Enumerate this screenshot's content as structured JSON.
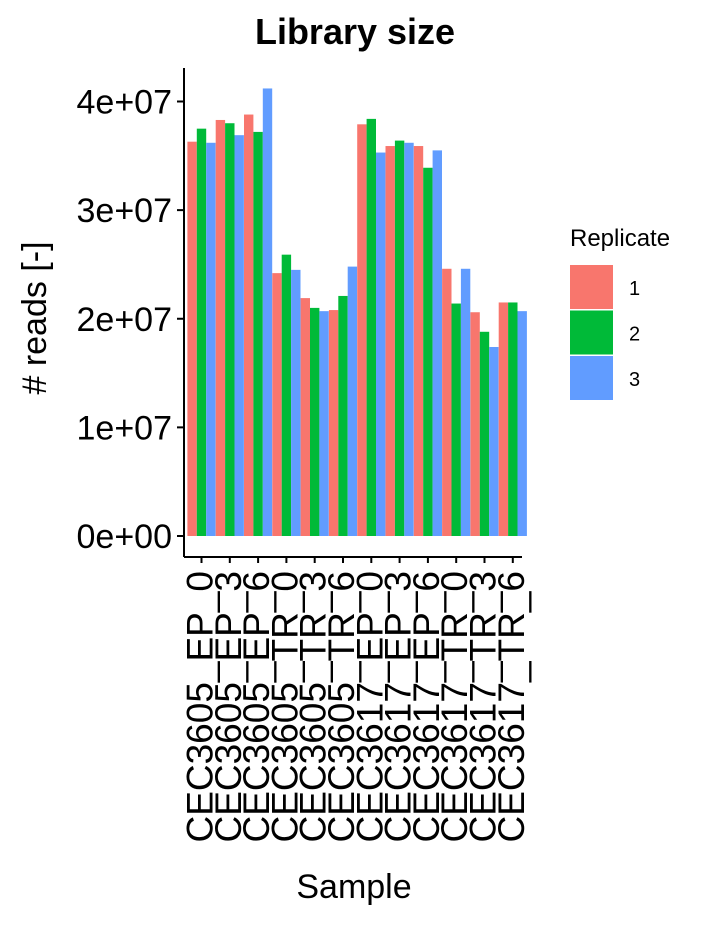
{
  "chart_data": {
    "type": "bar",
    "title": "Library size",
    "xlabel": "Sample",
    "ylabel": "# reads [-]",
    "ylim": [
      0,
      40000000
    ],
    "yticks": [
      {
        "value": 0,
        "label": "0e+00"
      },
      {
        "value": 10000000,
        "label": "1e+07"
      },
      {
        "value": 20000000,
        "label": "2e+07"
      },
      {
        "value": 30000000,
        "label": "3e+07"
      },
      {
        "value": 40000000,
        "label": "4e+07"
      }
    ],
    "categories": [
      "CEC3605_EP_0",
      "CEC3605_EP_3",
      "CEC3605_EP_6",
      "CEC3605_TR_0",
      "CEC3605_TR_3",
      "CEC3605_TR_6",
      "CEC3617_EP_0",
      "CEC3617_EP_3",
      "CEC3617_EP_6",
      "CEC3617_TR_0",
      "CEC3617_TR_3",
      "CEC3617_TR_6"
    ],
    "legend": {
      "title": "Replicate",
      "position": "right"
    },
    "series": [
      {
        "name": "1",
        "color": "#F8766D",
        "values": [
          36300000,
          38300000,
          38800000,
          24200000,
          21900000,
          20800000,
          37900000,
          35900000,
          35900000,
          24600000,
          20600000,
          21500000
        ]
      },
      {
        "name": "2",
        "color": "#00BA38",
        "values": [
          37500000,
          38000000,
          37200000,
          25900000,
          21000000,
          22100000,
          38400000,
          36400000,
          33900000,
          21400000,
          18800000,
          21500000
        ]
      },
      {
        "name": "3",
        "color": "#619CFF",
        "values": [
          36200000,
          36900000,
          41200000,
          24500000,
          20700000,
          24800000,
          35300000,
          36200000,
          35500000,
          24600000,
          17400000,
          20700000
        ]
      }
    ],
    "grid": false
  }
}
